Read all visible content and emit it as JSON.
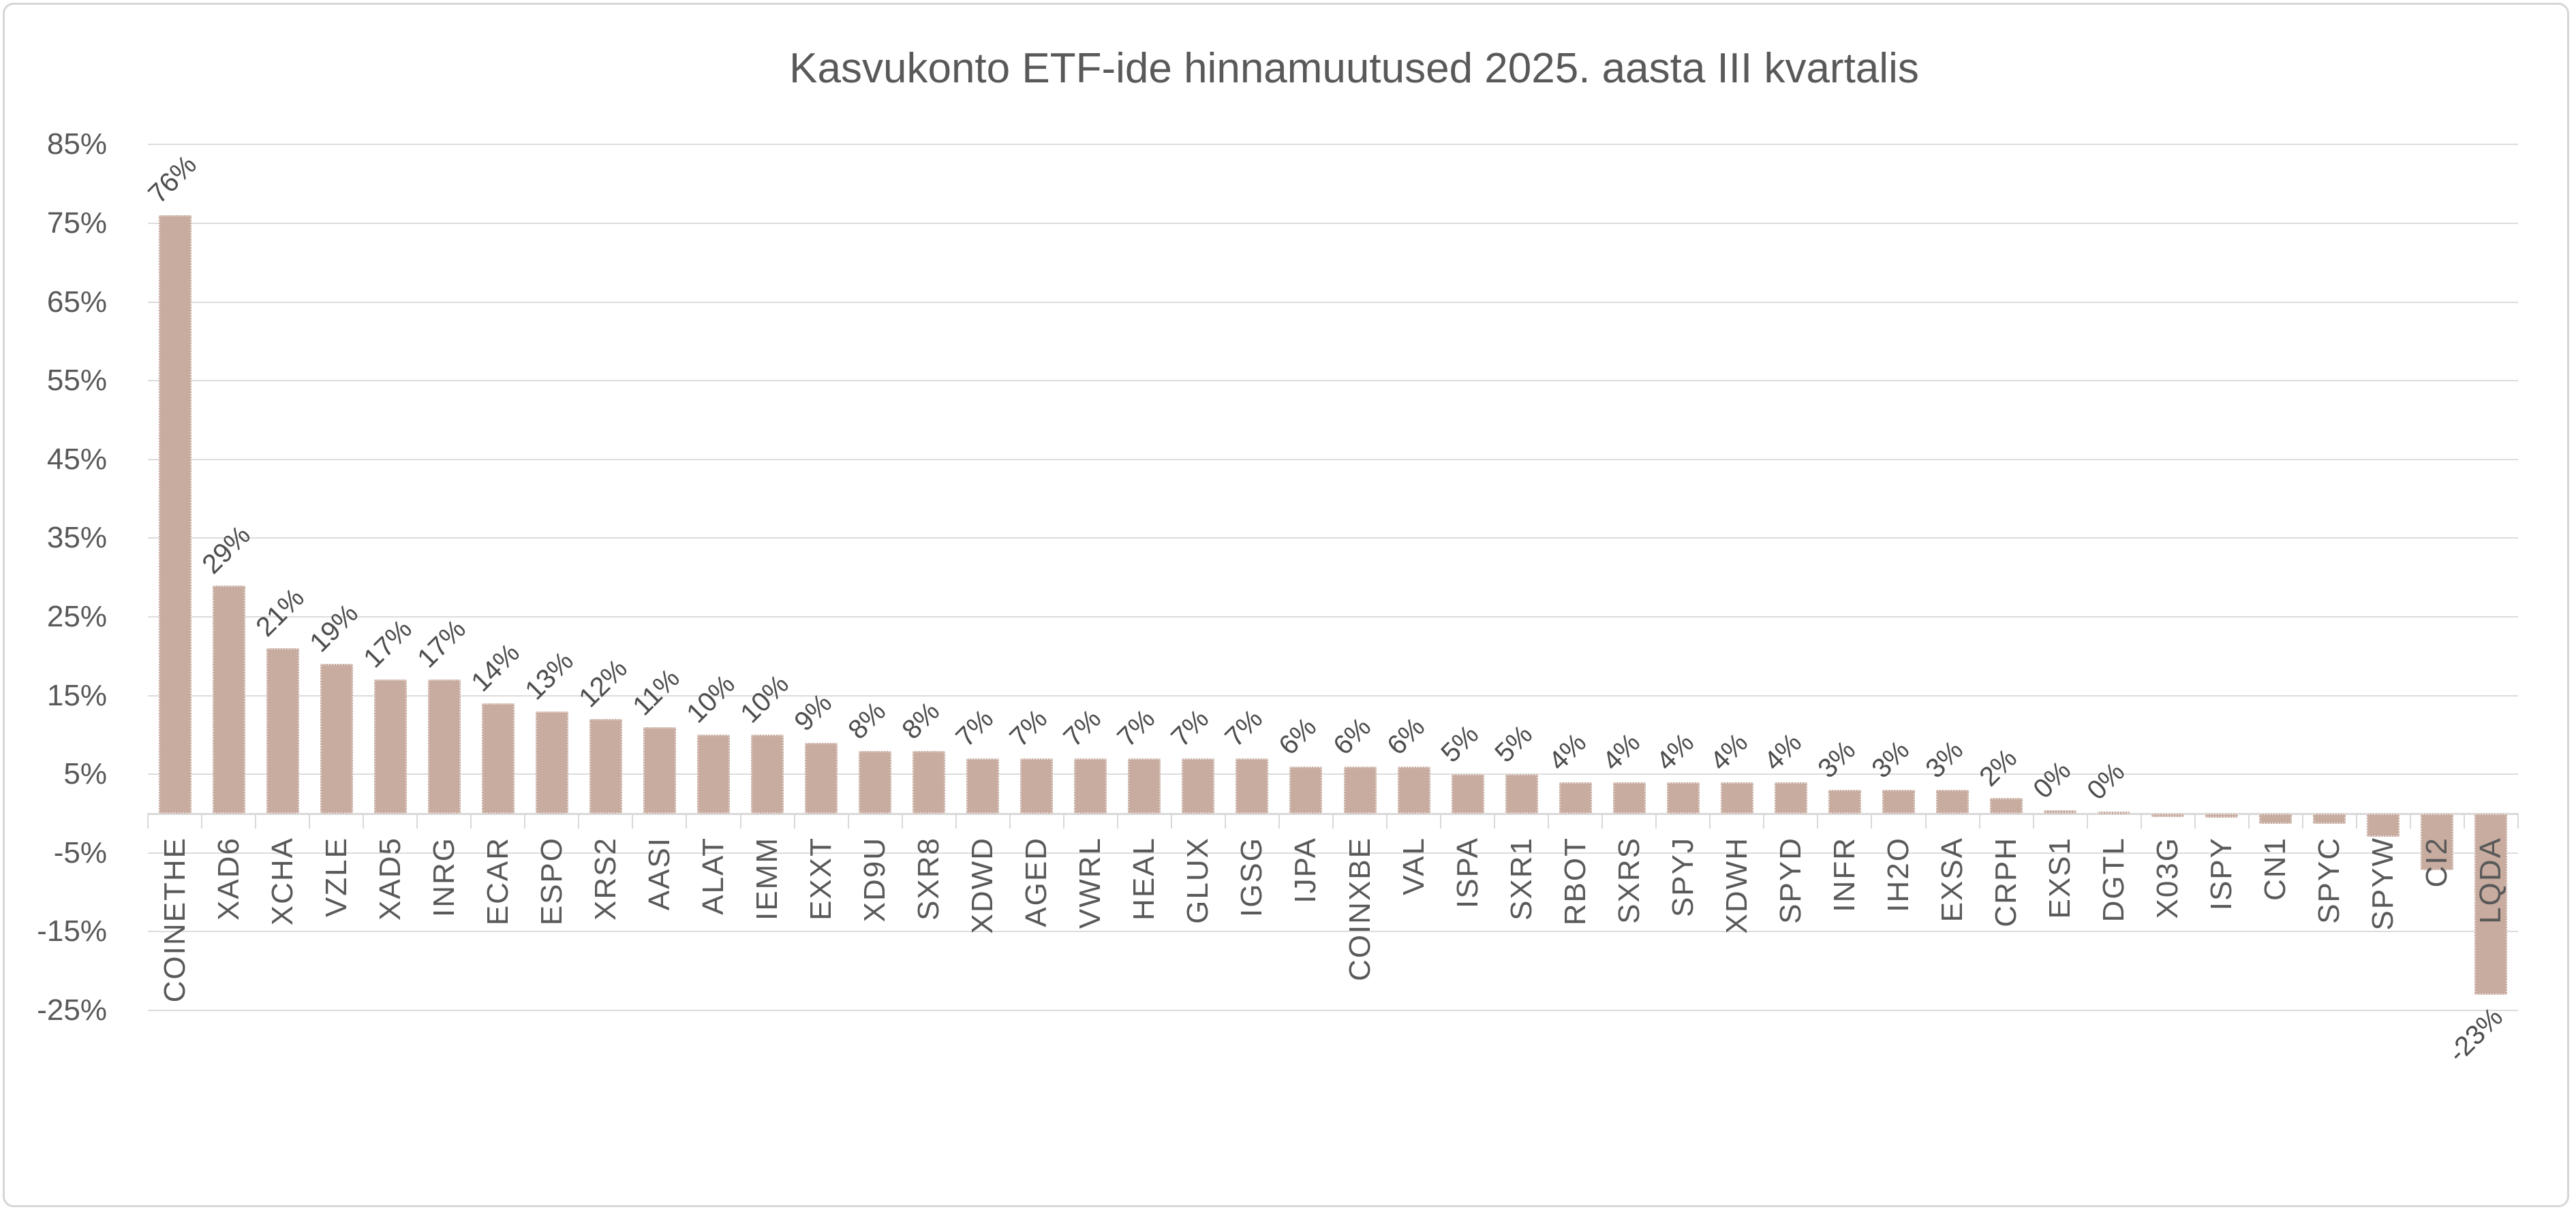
{
  "chart_title": "Kasvukonto ETF-ide hinnamuutused 2025. aasta III kvartalis",
  "colors": {
    "bar": "#c8aca0",
    "grid": "#dcdcdc",
    "axis": "#d9d9d9",
    "text": "#595959",
    "data_label_text": "#4d4d4d",
    "frame_border": "#d6d6d6",
    "background": "#ffffff"
  },
  "y_axis": {
    "tick_labels": [
      "85%",
      "75%",
      "65%",
      "55%",
      "45%",
      "35%",
      "25%",
      "15%",
      "5%",
      "-5%",
      "-15%",
      "-25%"
    ],
    "tick_values": [
      85,
      75,
      65,
      55,
      45,
      35,
      25,
      15,
      5,
      -5,
      -15,
      -25
    ],
    "max": 85,
    "min": -25,
    "major_unit": 10
  },
  "chart_data": {
    "type": "bar",
    "title": "Kasvukonto ETF-ide hinnamuutused 2025. aasta III kvartalis",
    "xlabel": "",
    "ylabel": "",
    "ylim": [
      -25,
      85
    ],
    "grid": true,
    "legend_position": "none",
    "categories": [
      "COINETHE",
      "XAD6",
      "XCHA",
      "VZLE",
      "XAD5",
      "INRG",
      "ECAR",
      "ESPO",
      "XRS2",
      "AASI",
      "ALAT",
      "IEMM",
      "EXXT",
      "XD9U",
      "SXR8",
      "XDWD",
      "AGED",
      "VWRL",
      "HEAL",
      "GLUX",
      "IGSG",
      "IJPA",
      "COINXBE",
      "VAL",
      "ISPA",
      "SXR1",
      "RBOT",
      "SXRS",
      "SPYJ",
      "XDWH",
      "SPYD",
      "INFR",
      "IH2O",
      "EXSA",
      "CRPH",
      "EXS1",
      "DGTL",
      "X03G",
      "ISPY",
      "CN1",
      "SPYC",
      "SPYW",
      "CI2",
      "LQDA"
    ],
    "values": [
      76,
      29,
      21,
      19,
      17,
      17,
      14,
      13,
      12,
      11,
      10,
      10,
      9,
      8,
      8,
      7,
      7,
      7,
      7,
      7,
      7,
      6,
      6,
      6,
      5,
      5,
      4,
      4,
      4,
      4,
      4,
      3,
      3,
      3,
      2,
      0.4,
      0.3,
      -0.4,
      -0.5,
      -1.3,
      -1.3,
      -2.9,
      -7.2,
      -23
    ],
    "bar_labels": [
      "76%",
      "29%",
      "21%",
      "19%",
      "17%",
      "17%",
      "14%",
      "13%",
      "12%",
      "11%",
      "10%",
      "10%",
      "9%",
      "8%",
      "8%",
      "7%",
      "7%",
      "7%",
      "7%",
      "7%",
      "7%",
      "6%",
      "6%",
      "6%",
      "5%",
      "5%",
      "4%",
      "4%",
      "4%",
      "4%",
      "4%",
      "3%",
      "3%",
      "3%",
      "2%",
      "0%",
      "0%",
      "",
      "",
      "",
      "",
      "",
      "",
      "-23%"
    ]
  }
}
